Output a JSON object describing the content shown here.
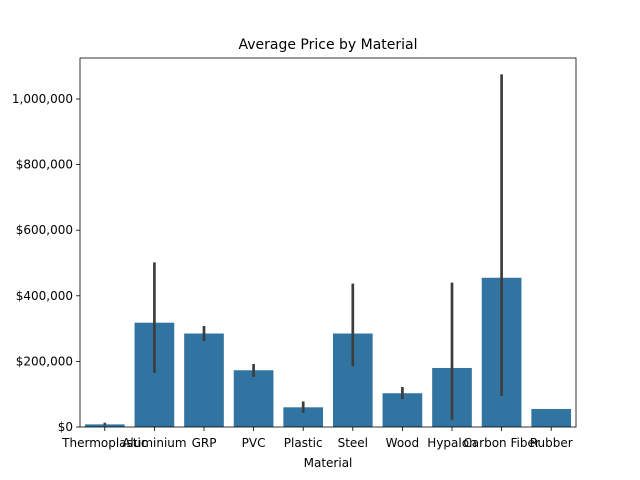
{
  "chart_data": {
    "type": "bar",
    "title": "Average Price by Material",
    "xlabel": "Material",
    "ylabel": "",
    "categories": [
      "Thermoplastic",
      "Aluminium",
      "GRP",
      "PVC",
      "Plastic",
      "Steel",
      "Wood",
      "Hypalon",
      "Carbon Fiber",
      "Rubber"
    ],
    "values": [
      8000,
      318000,
      285000,
      173000,
      60000,
      285000,
      103000,
      180000,
      455000,
      55000
    ],
    "error_low": [
      5000,
      165000,
      262000,
      153000,
      43000,
      185000,
      85000,
      22000,
      95000,
      55000
    ],
    "error_high": [
      13000,
      502000,
      308000,
      192000,
      78000,
      437000,
      122000,
      440000,
      1075000,
      55000
    ],
    "ylim": [
      0,
      1125000
    ],
    "yticks": [
      0,
      200000,
      400000,
      600000,
      800000,
      1000000
    ],
    "ytick_labels": [
      "$0",
      "$200,000",
      "$400,000",
      "$600,000",
      "$800,000",
      "1,000,000"
    ],
    "grid": false,
    "colors": {
      "bar": "#3274a1",
      "errorbar": "#3d3d3d"
    }
  }
}
